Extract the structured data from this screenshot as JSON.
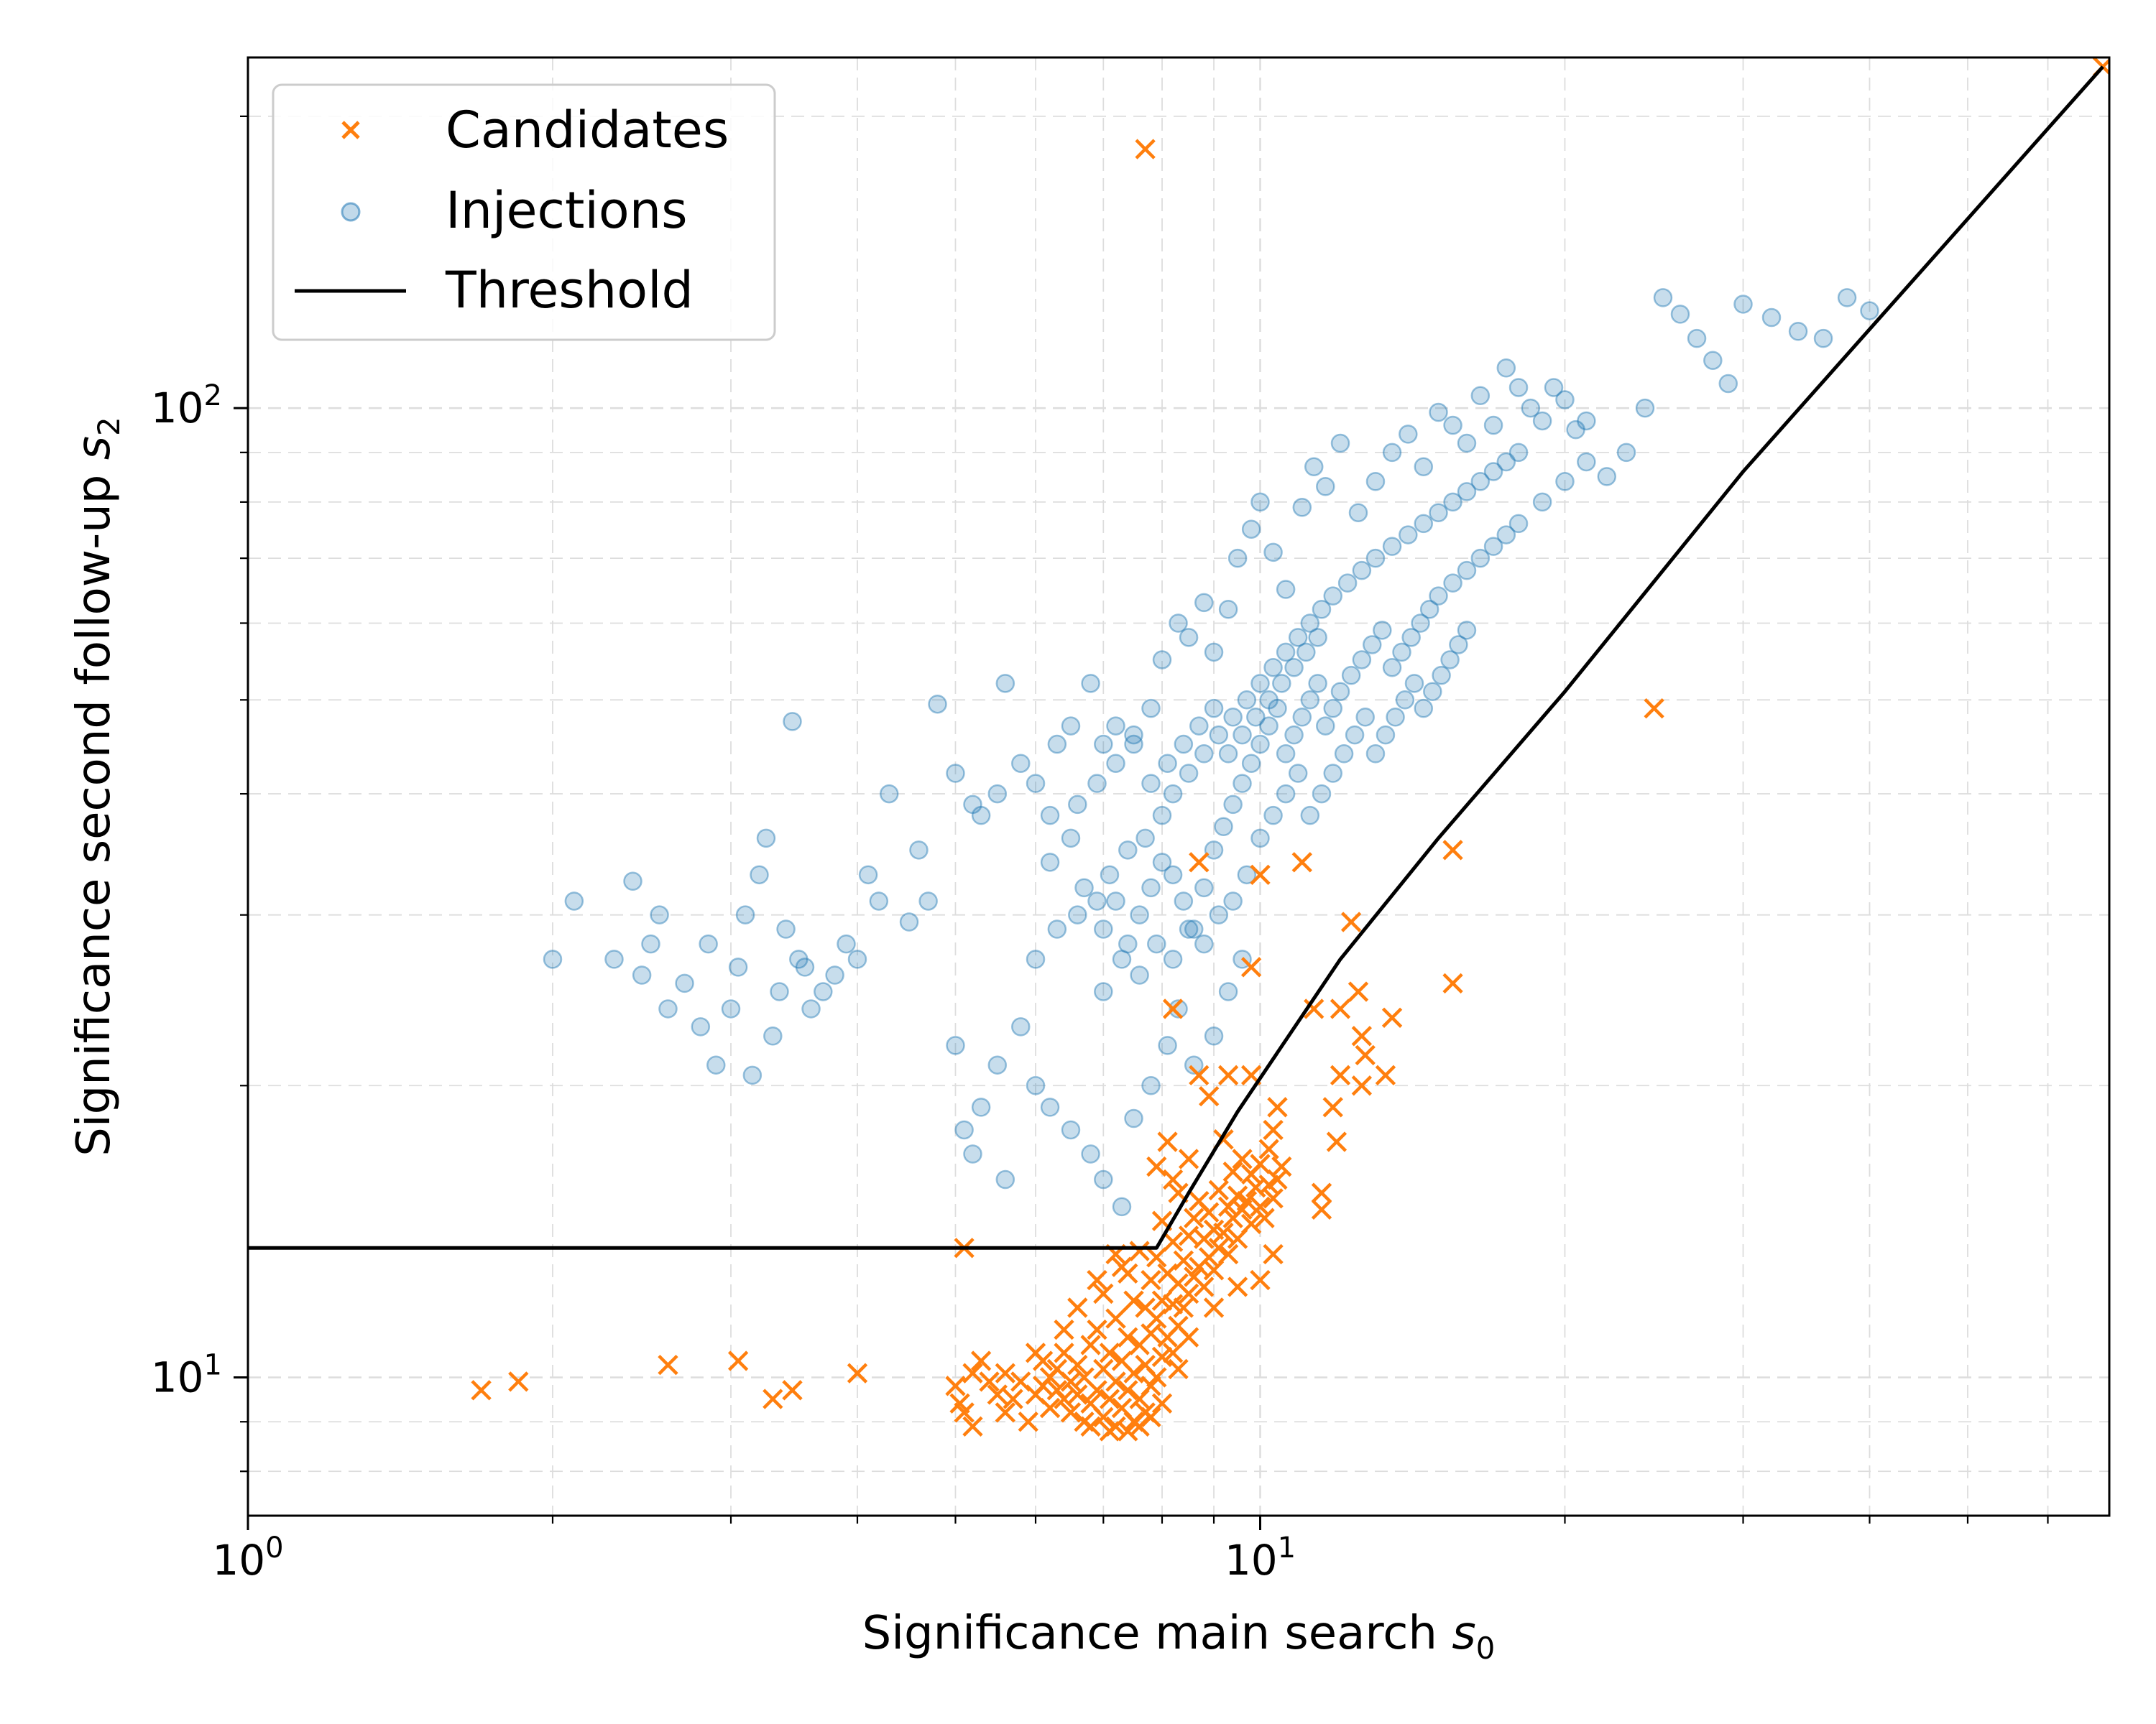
{
  "chart_data": {
    "type": "scatter",
    "xscale": "log",
    "yscale": "log",
    "xlim": [
      1,
      69
    ],
    "ylim": [
      7.2,
      230
    ],
    "xlabel": "Significance main search s0",
    "ylabel": "Significance second follow-up s2",
    "x_tick_labels": [
      {
        "base": "10",
        "exp": "0",
        "value": 1
      },
      {
        "base": "10",
        "exp": "1",
        "value": 10
      }
    ],
    "y_tick_labels": [
      {
        "base": "10",
        "exp": "1",
        "value": 10
      },
      {
        "base": "10",
        "exp": "2",
        "value": 100
      }
    ],
    "grid": true,
    "legend_position": "upper-left",
    "legend": [
      {
        "label": "Candidates",
        "marker": "x",
        "color": "#ff7f0e"
      },
      {
        "label": "Injections",
        "marker": "circle",
        "color": "#1f77b4"
      },
      {
        "label": "Threshold",
        "marker": "line",
        "color": "#000000"
      }
    ],
    "colors": {
      "candidates": "#ff7f0e",
      "injections": "#1f77b4",
      "threshold": "#000000"
    },
    "threshold": {
      "x": [
        1,
        7.9,
        8.5,
        9.5,
        12,
        15,
        20,
        30,
        68
      ],
      "y": [
        13.6,
        13.6,
        15.5,
        18.8,
        27,
        36,
        51,
        86,
        225
      ]
    },
    "candidates": [
      [
        1.7,
        9.7
      ],
      [
        1.85,
        9.9
      ],
      [
        2.6,
        10.3
      ],
      [
        3.05,
        10.4
      ],
      [
        3.3,
        9.5
      ],
      [
        3.45,
        9.7
      ],
      [
        4.0,
        10.1
      ],
      [
        5.1,
        13.6
      ],
      [
        7.7,
        185
      ],
      [
        24.5,
        49
      ],
      [
        68,
        225
      ],
      [
        15.5,
        35
      ],
      [
        15.5,
        25.5
      ],
      [
        12.3,
        29.5
      ],
      [
        11.0,
        34
      ],
      [
        10.0,
        33
      ],
      [
        8.7,
        34
      ],
      [
        9.8,
        26.5
      ],
      [
        11.3,
        24
      ],
      [
        12.0,
        24
      ],
      [
        12.5,
        25
      ],
      [
        13.5,
        23.5
      ],
      [
        12.6,
        22.5
      ],
      [
        12.7,
        21.5
      ],
      [
        12.0,
        20.5
      ],
      [
        12.6,
        20.0
      ],
      [
        13.3,
        20.5
      ],
      [
        11.8,
        19.0
      ],
      [
        11.9,
        17.5
      ],
      [
        11.5,
        15.5
      ],
      [
        10.4,
        19.0
      ],
      [
        10.3,
        18.0
      ],
      [
        9.8,
        20.5
      ],
      [
        9.3,
        20.5
      ],
      [
        8.7,
        20.5
      ],
      [
        8.9,
        19.5
      ],
      [
        8.2,
        24
      ],
      [
        5.0,
        9.8
      ],
      [
        5.05,
        9.4
      ],
      [
        5.1,
        9.2
      ],
      [
        5.2,
        8.9
      ],
      [
        5.2,
        10.1
      ],
      [
        5.3,
        10.4
      ],
      [
        5.4,
        9.9
      ],
      [
        5.5,
        9.6
      ],
      [
        5.6,
        10.1
      ],
      [
        5.7,
        9.5
      ],
      [
        5.8,
        9.9
      ],
      [
        6.0,
        9.6
      ],
      [
        6.1,
        9.8
      ],
      [
        6.1,
        10.4
      ],
      [
        6.2,
        9.3
      ],
      [
        6.2,
        10.0
      ],
      [
        6.3,
        9.7
      ],
      [
        6.3,
        10.2
      ],
      [
        6.4,
        9.5
      ],
      [
        6.4,
        10.6
      ],
      [
        6.5,
        9.2
      ],
      [
        6.5,
        9.9
      ],
      [
        6.6,
        10.3
      ],
      [
        6.6,
        9.6
      ],
      [
        6.7,
        9.0
      ],
      [
        6.7,
        10.0
      ],
      [
        6.8,
        9.4
      ],
      [
        6.8,
        10.8
      ],
      [
        6.9,
        9.7
      ],
      [
        6.9,
        11.2
      ],
      [
        7.0,
        9.1
      ],
      [
        7.0,
        10.2
      ],
      [
        7.0,
        12.2
      ],
      [
        7.1,
        9.5
      ],
      [
        7.1,
        10.6
      ],
      [
        7.2,
        8.9
      ],
      [
        7.2,
        9.9
      ],
      [
        7.2,
        11.5
      ],
      [
        7.3,
        9.3
      ],
      [
        7.3,
        10.4
      ],
      [
        7.3,
        13.0
      ],
      [
        7.4,
        9.7
      ],
      [
        7.4,
        11.0
      ],
      [
        7.5,
        9.0
      ],
      [
        7.5,
        10.1
      ],
      [
        7.5,
        12.0
      ],
      [
        7.6,
        9.5
      ],
      [
        7.6,
        10.8
      ],
      [
        7.6,
        13.5
      ],
      [
        7.7,
        9.2
      ],
      [
        7.7,
        10.3
      ],
      [
        7.7,
        11.8
      ],
      [
        7.8,
        9.8
      ],
      [
        7.8,
        11.1
      ],
      [
        7.8,
        12.6
      ],
      [
        7.9,
        10.0
      ],
      [
        7.9,
        11.5
      ],
      [
        7.9,
        13.3
      ],
      [
        8.0,
        10.5
      ],
      [
        8.0,
        12.0
      ],
      [
        8.0,
        14.5
      ],
      [
        8.1,
        11.0
      ],
      [
        8.1,
        12.8
      ],
      [
        8.2,
        10.6
      ],
      [
        8.2,
        11.9
      ],
      [
        8.2,
        13.8
      ],
      [
        8.3,
        11.3
      ],
      [
        8.3,
        12.5
      ],
      [
        8.3,
        15.5
      ],
      [
        8.4,
        11.8
      ],
      [
        8.4,
        13.2
      ],
      [
        8.5,
        12.2
      ],
      [
        8.5,
        14.0
      ],
      [
        8.6,
        12.7
      ],
      [
        8.6,
        14.6
      ],
      [
        8.7,
        13.0
      ],
      [
        8.7,
        15.2
      ],
      [
        8.8,
        12.4
      ],
      [
        8.8,
        13.9
      ],
      [
        8.9,
        13.3
      ],
      [
        8.9,
        14.8
      ],
      [
        9.0,
        12.9
      ],
      [
        9.0,
        14.2
      ],
      [
        9.1,
        13.6
      ],
      [
        9.1,
        15.6
      ],
      [
        9.2,
        14.1
      ],
      [
        9.3,
        13.4
      ],
      [
        9.3,
        15.0
      ],
      [
        9.4,
        14.6
      ],
      [
        9.4,
        16.3
      ],
      [
        9.5,
        13.9
      ],
      [
        9.5,
        15.4
      ],
      [
        9.6,
        14.9
      ],
      [
        9.6,
        16.8
      ],
      [
        9.7,
        15.2
      ],
      [
        9.8,
        14.4
      ],
      [
        9.8,
        16.2
      ],
      [
        9.9,
        15.7
      ],
      [
        10.0,
        15.0
      ],
      [
        10.0,
        16.6
      ],
      [
        10.1,
        14.6
      ],
      [
        10.2,
        15.8
      ],
      [
        10.2,
        17.2
      ],
      [
        10.3,
        15.3
      ],
      [
        10.3,
        13.4
      ],
      [
        10.4,
        16.0
      ],
      [
        10.0,
        12.6
      ],
      [
        9.5,
        12.4
      ],
      [
        9.0,
        11.8
      ],
      [
        8.5,
        11.0
      ],
      [
        8.3,
        10.2
      ],
      [
        8.0,
        9.4
      ],
      [
        7.8,
        9.1
      ],
      [
        7.6,
        8.9
      ],
      [
        7.4,
        8.8
      ],
      [
        7.1,
        8.8
      ],
      [
        6.8,
        8.9
      ],
      [
        11.5,
        14.9
      ],
      [
        10.5,
        16.5
      ],
      [
        9.2,
        17.6
      ],
      [
        8.5,
        16.8
      ],
      [
        8.2,
        16.0
      ],
      [
        8.1,
        17.5
      ],
      [
        7.9,
        16.5
      ],
      [
        6.4,
        11.2
      ],
      [
        6.6,
        11.8
      ],
      [
        6.9,
        12.6
      ],
      [
        7.4,
        12.8
      ],
      [
        7.2,
        13.4
      ],
      [
        6.0,
        10.6
      ],
      [
        5.9,
        9.0
      ],
      [
        5.6,
        9.2
      ]
    ],
    "injections": [
      [
        2.0,
        27
      ],
      [
        2.1,
        31
      ],
      [
        2.3,
        27
      ],
      [
        2.4,
        32.5
      ],
      [
        2.45,
        26
      ],
      [
        2.5,
        28
      ],
      [
        2.55,
        30
      ],
      [
        2.6,
        24
      ],
      [
        2.7,
        25.5
      ],
      [
        2.8,
        23
      ],
      [
        2.85,
        28
      ],
      [
        2.9,
        21
      ],
      [
        3.0,
        24
      ],
      [
        3.05,
        26.5
      ],
      [
        3.1,
        30
      ],
      [
        3.15,
        20.5
      ],
      [
        3.2,
        33
      ],
      [
        3.25,
        36
      ],
      [
        3.3,
        22.5
      ],
      [
        3.35,
        25
      ],
      [
        3.4,
        29
      ],
      [
        3.45,
        47.5
      ],
      [
        3.5,
        27
      ],
      [
        3.55,
        26.5
      ],
      [
        3.6,
        24
      ],
      [
        3.7,
        25
      ],
      [
        3.8,
        26
      ],
      [
        3.9,
        28
      ],
      [
        4.0,
        27
      ],
      [
        4.1,
        33
      ],
      [
        4.2,
        31
      ],
      [
        4.3,
        40
      ],
      [
        4.5,
        29.5
      ],
      [
        4.6,
        35
      ],
      [
        4.7,
        31
      ],
      [
        4.8,
        49.5
      ],
      [
        5.0,
        42
      ],
      [
        5.2,
        39
      ],
      [
        5.3,
        38
      ],
      [
        5.5,
        40
      ],
      [
        5.6,
        52
      ],
      [
        5.8,
        43
      ],
      [
        6.0,
        41
      ],
      [
        6.2,
        38
      ],
      [
        6.3,
        45
      ],
      [
        6.5,
        47
      ],
      [
        6.8,
        52
      ],
      [
        7.0,
        45
      ],
      [
        7.2,
        47
      ],
      [
        7.5,
        46
      ],
      [
        7.8,
        49
      ],
      [
        8.0,
        55
      ],
      [
        8.3,
        60
      ],
      [
        8.5,
        58
      ],
      [
        8.8,
        63
      ],
      [
        9.0,
        56
      ],
      [
        9.3,
        62
      ],
      [
        9.5,
        70
      ],
      [
        9.8,
        75
      ],
      [
        10.0,
        80
      ],
      [
        10.3,
        71
      ],
      [
        10.6,
        65
      ],
      [
        11.0,
        79
      ],
      [
        11.3,
        87
      ],
      [
        11.6,
        83
      ],
      [
        12.0,
        92
      ],
      [
        12.5,
        78
      ],
      [
        13.0,
        84
      ],
      [
        13.5,
        90
      ],
      [
        14.0,
        94
      ],
      [
        14.5,
        87
      ],
      [
        15.0,
        99
      ],
      [
        15.5,
        96
      ],
      [
        16.0,
        92
      ],
      [
        16.5,
        103
      ],
      [
        17.0,
        96
      ],
      [
        17.5,
        110
      ],
      [
        18.0,
        105
      ],
      [
        18.5,
        100
      ],
      [
        19.0,
        97
      ],
      [
        19.5,
        105
      ],
      [
        20.0,
        102
      ],
      [
        20.5,
        95
      ],
      [
        21.0,
        97
      ],
      [
        22.0,
        85
      ],
      [
        23.0,
        90
      ],
      [
        24.0,
        100
      ],
      [
        25.0,
        130
      ],
      [
        26.0,
        125
      ],
      [
        27.0,
        118
      ],
      [
        28.0,
        112
      ],
      [
        29.0,
        106
      ],
      [
        30.0,
        128
      ],
      [
        32.0,
        124
      ],
      [
        34.0,
        120
      ],
      [
        36.0,
        118
      ],
      [
        38.0,
        130
      ],
      [
        40.0,
        126
      ],
      [
        5.0,
        22
      ],
      [
        5.1,
        18
      ],
      [
        5.2,
        17
      ],
      [
        5.3,
        19
      ],
      [
        5.5,
        21
      ],
      [
        5.6,
        16
      ],
      [
        5.8,
        23
      ],
      [
        6.0,
        20
      ],
      [
        6.2,
        19
      ],
      [
        6.5,
        18
      ],
      [
        6.8,
        17
      ],
      [
        7.0,
        16
      ],
      [
        7.3,
        15
      ],
      [
        7.5,
        18.5
      ],
      [
        7.8,
        20
      ],
      [
        8.1,
        22
      ],
      [
        8.3,
        24
      ],
      [
        8.6,
        21
      ],
      [
        9.0,
        22.5
      ],
      [
        9.3,
        25
      ],
      [
        9.6,
        27
      ],
      [
        6.0,
        27
      ],
      [
        6.3,
        29
      ],
      [
        6.6,
        30
      ],
      [
        6.9,
        31
      ],
      [
        7.1,
        33
      ],
      [
        7.4,
        35
      ],
      [
        7.7,
        36
      ],
      [
        8.0,
        38
      ],
      [
        8.2,
        40
      ],
      [
        8.5,
        42
      ],
      [
        8.8,
        44
      ],
      [
        9.1,
        46
      ],
      [
        9.4,
        48
      ],
      [
        9.7,
        50
      ],
      [
        10.0,
        52
      ],
      [
        10.3,
        54
      ],
      [
        10.6,
        56
      ],
      [
        10.9,
        58
      ],
      [
        11.2,
        60
      ],
      [
        11.5,
        62
      ],
      [
        11.8,
        64
      ],
      [
        12.2,
        66
      ],
      [
        12.6,
        68
      ],
      [
        13.0,
        70
      ],
      [
        13.5,
        72
      ],
      [
        14.0,
        74
      ],
      [
        14.5,
        76
      ],
      [
        15.0,
        78
      ],
      [
        15.5,
        80
      ],
      [
        16.0,
        82
      ],
      [
        16.5,
        84
      ],
      [
        17.0,
        86
      ],
      [
        17.5,
        88
      ],
      [
        18.0,
        90
      ],
      [
        6.2,
        34
      ],
      [
        6.5,
        36
      ],
      [
        6.7,
        32
      ],
      [
        7.0,
        29
      ],
      [
        7.2,
        31
      ],
      [
        7.4,
        28
      ],
      [
        7.6,
        30
      ],
      [
        7.8,
        32
      ],
      [
        8.0,
        34
      ],
      [
        8.2,
        33
      ],
      [
        8.4,
        31
      ],
      [
        8.6,
        29
      ],
      [
        8.8,
        32
      ],
      [
        9.0,
        35
      ],
      [
        9.2,
        37
      ],
      [
        9.4,
        39
      ],
      [
        9.6,
        41
      ],
      [
        9.8,
        43
      ],
      [
        10.0,
        45
      ],
      [
        10.2,
        47
      ],
      [
        10.4,
        49
      ],
      [
        10.6,
        44
      ],
      [
        10.8,
        46
      ],
      [
        11.0,
        48
      ],
      [
        11.2,
        50
      ],
      [
        11.4,
        52
      ],
      [
        11.6,
        47
      ],
      [
        11.8,
        49
      ],
      [
        12.0,
        51
      ],
      [
        12.3,
        53
      ],
      [
        12.6,
        55
      ],
      [
        12.9,
        57
      ],
      [
        13.2,
        59
      ],
      [
        13.5,
        54
      ],
      [
        13.8,
        56
      ],
      [
        14.1,
        58
      ],
      [
        14.4,
        60
      ],
      [
        14.7,
        62
      ],
      [
        15.0,
        64
      ],
      [
        15.5,
        66
      ],
      [
        16.0,
        68
      ],
      [
        16.5,
        70
      ],
      [
        17.0,
        72
      ],
      [
        17.5,
        74
      ],
      [
        18.0,
        76
      ],
      [
        19.0,
        80
      ],
      [
        20.0,
        84
      ],
      [
        21.0,
        88
      ],
      [
        7.0,
        25
      ],
      [
        7.3,
        27
      ],
      [
        7.6,
        26
      ],
      [
        7.9,
        28
      ],
      [
        8.2,
        27
      ],
      [
        8.5,
        29
      ],
      [
        8.8,
        28
      ],
      [
        9.1,
        30
      ],
      [
        9.4,
        31
      ],
      [
        9.7,
        33
      ],
      [
        10.0,
        36
      ],
      [
        10.3,
        38
      ],
      [
        10.6,
        40
      ],
      [
        10.9,
        42
      ],
      [
        11.2,
        38
      ],
      [
        11.5,
        40
      ],
      [
        11.8,
        42
      ],
      [
        12.1,
        44
      ],
      [
        12.4,
        46
      ],
      [
        12.7,
        48
      ],
      [
        13.0,
        44
      ],
      [
        13.3,
        46
      ],
      [
        13.6,
        48
      ],
      [
        13.9,
        50
      ],
      [
        14.2,
        52
      ],
      [
        14.5,
        49
      ],
      [
        14.8,
        51
      ],
      [
        15.1,
        53
      ],
      [
        15.4,
        55
      ],
      [
        15.7,
        57
      ],
      [
        16.0,
        59
      ],
      [
        6.6,
        39
      ],
      [
        6.9,
        41
      ],
      [
        7.2,
        43
      ],
      [
        7.5,
        45
      ],
      [
        7.8,
        41
      ],
      [
        8.1,
        43
      ],
      [
        8.4,
        45
      ],
      [
        8.7,
        47
      ],
      [
        9.0,
        49
      ],
      [
        9.3,
        44
      ],
      [
        9.6,
        46
      ],
      [
        9.9,
        48
      ],
      [
        10.2,
        50
      ],
      [
        10.5,
        52
      ],
      [
        10.8,
        54
      ],
      [
        11.1,
        56
      ],
      [
        11.4,
        58
      ]
    ]
  }
}
